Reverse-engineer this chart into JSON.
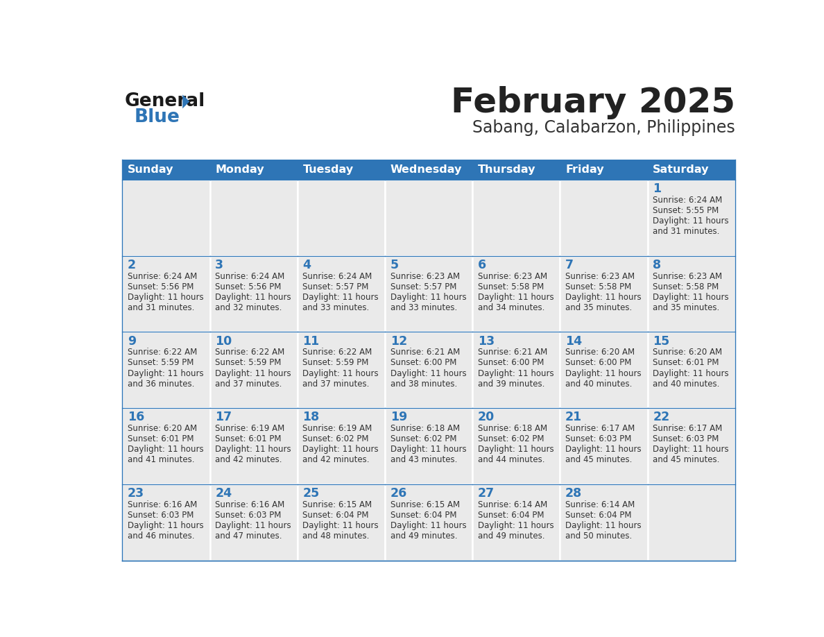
{
  "title": "February 2025",
  "subtitle": "Sabang, Calabarzon, Philippines",
  "header_bg_color": "#2e75b6",
  "header_text_color": "#ffffff",
  "cell_bg_color": "#eaeaea",
  "border_color": "#2e75b6",
  "title_color": "#222222",
  "subtitle_color": "#333333",
  "day_num_color": "#2e75b6",
  "cell_text_color": "#333333",
  "days_of_week": [
    "Sunday",
    "Monday",
    "Tuesday",
    "Wednesday",
    "Thursday",
    "Friday",
    "Saturday"
  ],
  "logo_general_color": "#1a1a1a",
  "logo_blue_color": "#2e75b6",
  "logo_triangle_color": "#2e75b6",
  "weeks": [
    [
      {
        "day": 0,
        "sunrise": "",
        "sunset": "",
        "daylight_h": "",
        "daylight_m": ""
      },
      {
        "day": 0,
        "sunrise": "",
        "sunset": "",
        "daylight_h": "",
        "daylight_m": ""
      },
      {
        "day": 0,
        "sunrise": "",
        "sunset": "",
        "daylight_h": "",
        "daylight_m": ""
      },
      {
        "day": 0,
        "sunrise": "",
        "sunset": "",
        "daylight_h": "",
        "daylight_m": ""
      },
      {
        "day": 0,
        "sunrise": "",
        "sunset": "",
        "daylight_h": "",
        "daylight_m": ""
      },
      {
        "day": 0,
        "sunrise": "",
        "sunset": "",
        "daylight_h": "",
        "daylight_m": ""
      },
      {
        "day": 1,
        "sunrise": "6:24 AM",
        "sunset": "5:55 PM",
        "daylight_h": "11 hours",
        "daylight_m": "and 31 minutes."
      }
    ],
    [
      {
        "day": 2,
        "sunrise": "6:24 AM",
        "sunset": "5:56 PM",
        "daylight_h": "11 hours",
        "daylight_m": "and 31 minutes."
      },
      {
        "day": 3,
        "sunrise": "6:24 AM",
        "sunset": "5:56 PM",
        "daylight_h": "11 hours",
        "daylight_m": "and 32 minutes."
      },
      {
        "day": 4,
        "sunrise": "6:24 AM",
        "sunset": "5:57 PM",
        "daylight_h": "11 hours",
        "daylight_m": "and 33 minutes."
      },
      {
        "day": 5,
        "sunrise": "6:23 AM",
        "sunset": "5:57 PM",
        "daylight_h": "11 hours",
        "daylight_m": "and 33 minutes."
      },
      {
        "day": 6,
        "sunrise": "6:23 AM",
        "sunset": "5:58 PM",
        "daylight_h": "11 hours",
        "daylight_m": "and 34 minutes."
      },
      {
        "day": 7,
        "sunrise": "6:23 AM",
        "sunset": "5:58 PM",
        "daylight_h": "11 hours",
        "daylight_m": "and 35 minutes."
      },
      {
        "day": 8,
        "sunrise": "6:23 AM",
        "sunset": "5:58 PM",
        "daylight_h": "11 hours",
        "daylight_m": "and 35 minutes."
      }
    ],
    [
      {
        "day": 9,
        "sunrise": "6:22 AM",
        "sunset": "5:59 PM",
        "daylight_h": "11 hours",
        "daylight_m": "and 36 minutes."
      },
      {
        "day": 10,
        "sunrise": "6:22 AM",
        "sunset": "5:59 PM",
        "daylight_h": "11 hours",
        "daylight_m": "and 37 minutes."
      },
      {
        "day": 11,
        "sunrise": "6:22 AM",
        "sunset": "5:59 PM",
        "daylight_h": "11 hours",
        "daylight_m": "and 37 minutes."
      },
      {
        "day": 12,
        "sunrise": "6:21 AM",
        "sunset": "6:00 PM",
        "daylight_h": "11 hours",
        "daylight_m": "and 38 minutes."
      },
      {
        "day": 13,
        "sunrise": "6:21 AM",
        "sunset": "6:00 PM",
        "daylight_h": "11 hours",
        "daylight_m": "and 39 minutes."
      },
      {
        "day": 14,
        "sunrise": "6:20 AM",
        "sunset": "6:00 PM",
        "daylight_h": "11 hours",
        "daylight_m": "and 40 minutes."
      },
      {
        "day": 15,
        "sunrise": "6:20 AM",
        "sunset": "6:01 PM",
        "daylight_h": "11 hours",
        "daylight_m": "and 40 minutes."
      }
    ],
    [
      {
        "day": 16,
        "sunrise": "6:20 AM",
        "sunset": "6:01 PM",
        "daylight_h": "11 hours",
        "daylight_m": "and 41 minutes."
      },
      {
        "day": 17,
        "sunrise": "6:19 AM",
        "sunset": "6:01 PM",
        "daylight_h": "11 hours",
        "daylight_m": "and 42 minutes."
      },
      {
        "day": 18,
        "sunrise": "6:19 AM",
        "sunset": "6:02 PM",
        "daylight_h": "11 hours",
        "daylight_m": "and 42 minutes."
      },
      {
        "day": 19,
        "sunrise": "6:18 AM",
        "sunset": "6:02 PM",
        "daylight_h": "11 hours",
        "daylight_m": "and 43 minutes."
      },
      {
        "day": 20,
        "sunrise": "6:18 AM",
        "sunset": "6:02 PM",
        "daylight_h": "11 hours",
        "daylight_m": "and 44 minutes."
      },
      {
        "day": 21,
        "sunrise": "6:17 AM",
        "sunset": "6:03 PM",
        "daylight_h": "11 hours",
        "daylight_m": "and 45 minutes."
      },
      {
        "day": 22,
        "sunrise": "6:17 AM",
        "sunset": "6:03 PM",
        "daylight_h": "11 hours",
        "daylight_m": "and 45 minutes."
      }
    ],
    [
      {
        "day": 23,
        "sunrise": "6:16 AM",
        "sunset": "6:03 PM",
        "daylight_h": "11 hours",
        "daylight_m": "and 46 minutes."
      },
      {
        "day": 24,
        "sunrise": "6:16 AM",
        "sunset": "6:03 PM",
        "daylight_h": "11 hours",
        "daylight_m": "and 47 minutes."
      },
      {
        "day": 25,
        "sunrise": "6:15 AM",
        "sunset": "6:04 PM",
        "daylight_h": "11 hours",
        "daylight_m": "and 48 minutes."
      },
      {
        "day": 26,
        "sunrise": "6:15 AM",
        "sunset": "6:04 PM",
        "daylight_h": "11 hours",
        "daylight_m": "and 49 minutes."
      },
      {
        "day": 27,
        "sunrise": "6:14 AM",
        "sunset": "6:04 PM",
        "daylight_h": "11 hours",
        "daylight_m": "and 49 minutes."
      },
      {
        "day": 28,
        "sunrise": "6:14 AM",
        "sunset": "6:04 PM",
        "daylight_h": "11 hours",
        "daylight_m": "and 50 minutes."
      },
      {
        "day": 0,
        "sunrise": "",
        "sunset": "",
        "daylight_h": "",
        "daylight_m": ""
      }
    ]
  ]
}
